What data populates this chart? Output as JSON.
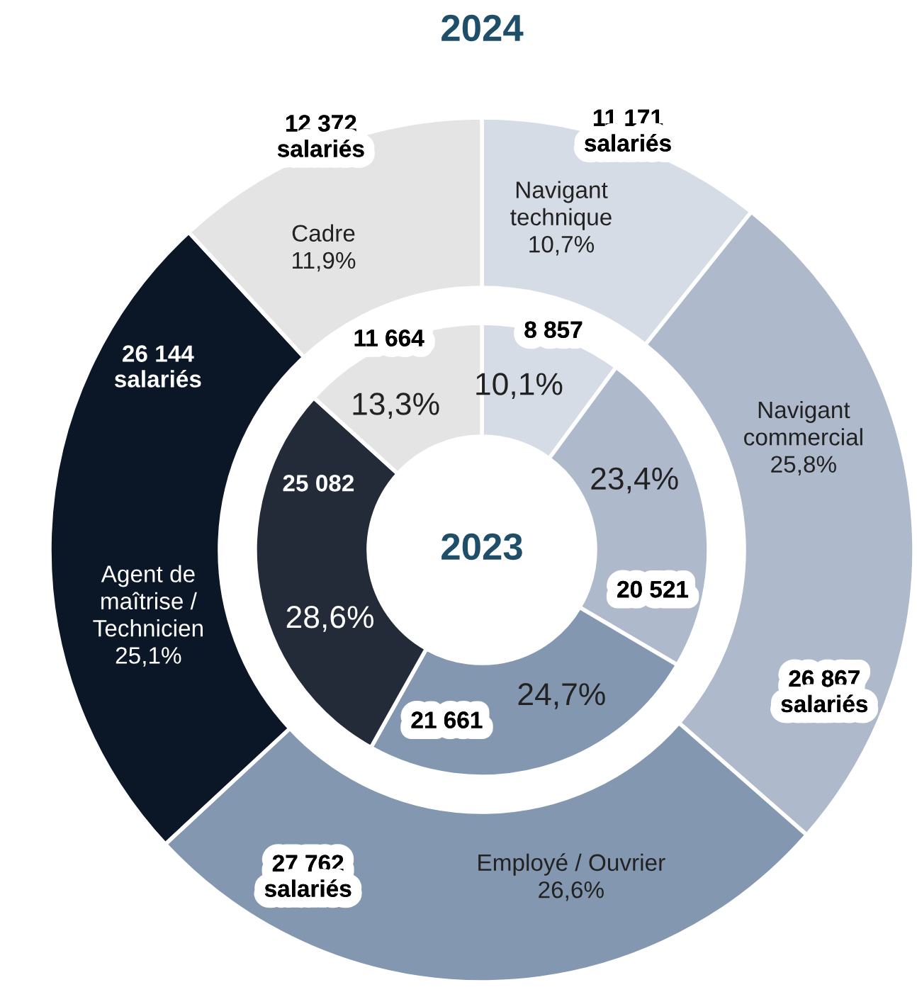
{
  "chart_data": {
    "type": "donut",
    "categories": [
      "Navigant\ntechnique",
      "Navigant\ncommercial",
      "Employé / Ouvrier",
      "Agent de\nmaîtrise /\nTechnicien",
      "Cadre"
    ],
    "series": [
      {
        "name": "2024",
        "values": [
          11171,
          26867,
          27762,
          26144,
          12372
        ],
        "colors": [
          "#d6dce6",
          "#aeb9cc",
          "#8497b0",
          "#0b1727",
          "#e4e4e4"
        ],
        "value_labels": [
          "11 171\nsalariés",
          "26 867\nsalariés",
          "27 762\nsalariés",
          "26 144\nsalariés",
          "12 372\nsalariés"
        ]
      },
      {
        "name": "2023",
        "values": [
          8857,
          20521,
          21661,
          25082,
          11664
        ],
        "colors": [
          "#d6dce6",
          "#aeb9cc",
          "#8497b0",
          "#232b38",
          "#e4e4e4"
        ],
        "value_labels": [
          "8 857",
          "20 521",
          "21 661",
          "25 082",
          "11 664"
        ]
      }
    ],
    "annotations": [
      "10,7%",
      "25,8%",
      "26,6%",
      "25,1%",
      "11,9%",
      "10,1%",
      "23,4%",
      "24,7%",
      "28,6%",
      "13,3%"
    ]
  }
}
